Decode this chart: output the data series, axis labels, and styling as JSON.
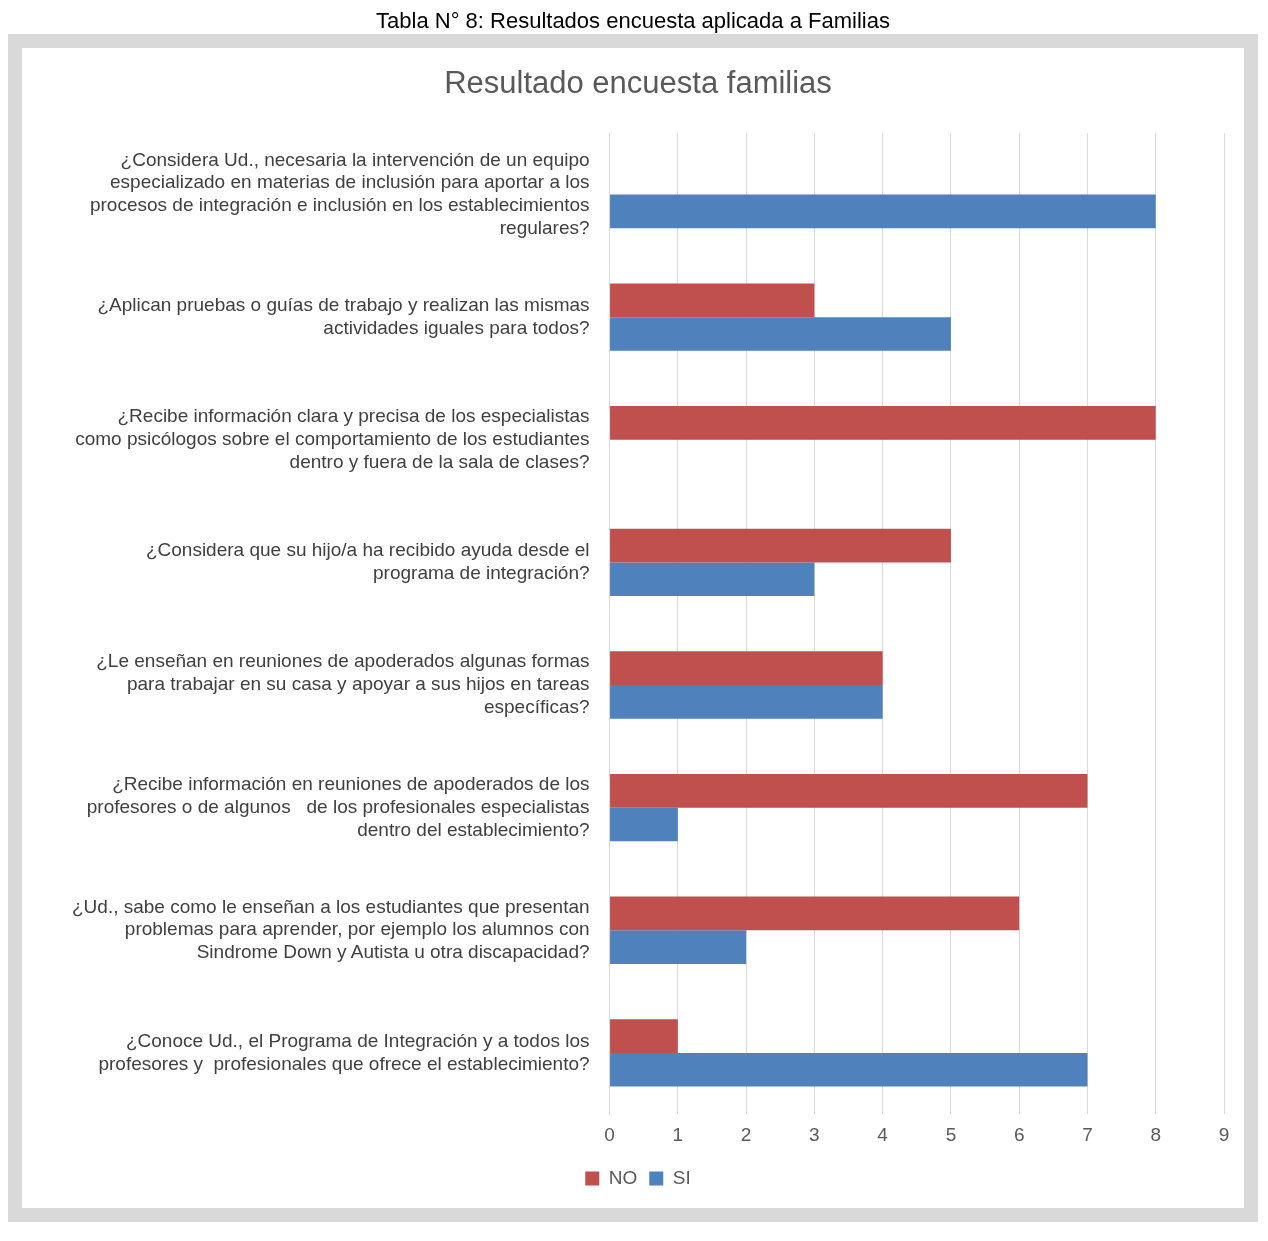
{
  "chart_data": {
    "type": "bar",
    "orientation": "horizontal",
    "title": "Resultado encuesta familias",
    "annotations": [
      "Tabla N° 8: Resultados encuesta aplicada a Familias"
    ],
    "categories": [
      "¿Considera Ud., necesaria la intervención de un equipo especializado en materias de inclusión para aportar a los procesos de integración e inclusión en los establecimientos regulares?",
      "¿Aplican pruebas o guías de trabajo y realizan las mismas actividades iguales para todos?",
      "¿Recibe información clara y precisa de los especialistas como psicólogos sobre el comportamiento de los estudiantes dentro y fuera de la sala de clases?",
      "¿Considera que su hijo/a ha recibido ayuda desde el programa de integración?",
      "¿Le enseñan en reuniones de apoderados algunas formas para trabajar en su casa y apoyar a sus hijos en tareas específicas?",
      "¿Recibe información en reuniones de apoderados de los profesores o de algunos   de los profesionales especialistas dentro del establecimiento?",
      "¿Ud., sabe como le enseñan a los estudiantes que presentan problemas para aprender, por ejemplo los alumnos con Sindrome Down y Autista u otra discapacidad?",
      "¿Conoce Ud., el Programa de Integración y a todos los profesores y  profesionales que ofrece el establecimiento?"
    ],
    "series": [
      {
        "name": "NO",
        "color": "#c0504d",
        "values": [
          0,
          3,
          8,
          5,
          4,
          7,
          6,
          1
        ]
      },
      {
        "name": "SI",
        "color": "#4f81bd",
        "values": [
          8,
          5,
          0,
          3,
          4,
          1,
          2,
          7
        ]
      }
    ],
    "xlim": [
      0,
      9
    ],
    "xticks": [
      0,
      1,
      2,
      3,
      4,
      5,
      6,
      7,
      8,
      9
    ],
    "grid": "x",
    "legend": "bottom"
  }
}
